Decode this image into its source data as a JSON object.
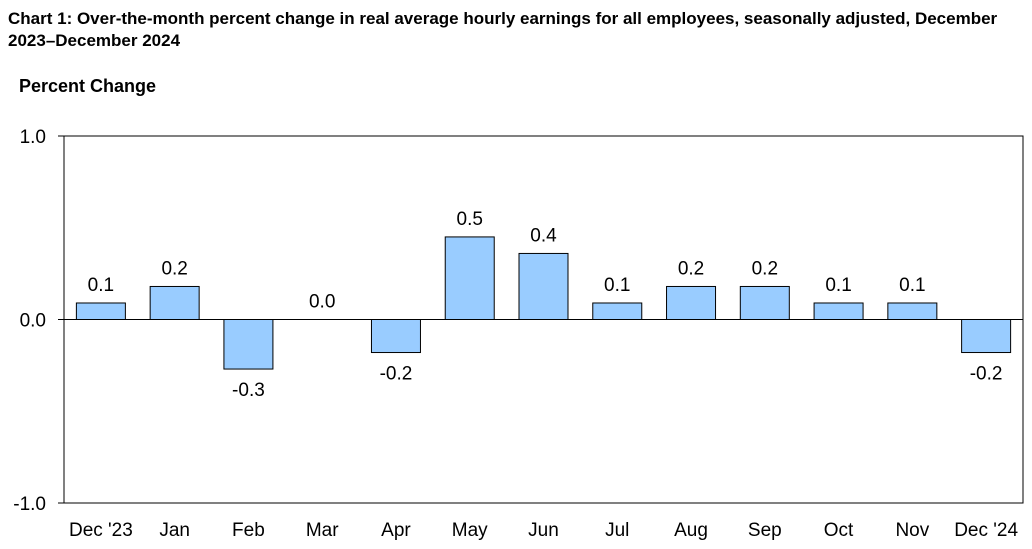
{
  "chart_data": {
    "type": "bar",
    "title": "Chart 1: Over-the-month percent change in real average hourly earnings for all employees, seasonally adjusted, December 2023–December 2024",
    "ylabel": "Percent Change",
    "xlabel": "",
    "ylim": [
      -1.0,
      1.0
    ],
    "yticks": [
      "1.0",
      "0.0",
      "-1.0"
    ],
    "categories": [
      "Dec '23",
      "Jan",
      "Feb",
      "Mar",
      "Apr",
      "May",
      "Jun",
      "Jul",
      "Aug",
      "Sep",
      "Oct",
      "Nov",
      "Dec '24"
    ],
    "values": [
      0.09,
      0.18,
      -0.27,
      0.0,
      -0.18,
      0.45,
      0.36,
      0.09,
      0.18,
      0.18,
      0.09,
      0.09,
      -0.18
    ],
    "data_labels": [
      "0.1",
      "0.2",
      "-0.3",
      "0.0",
      "-0.2",
      "0.5",
      "0.4",
      "0.1",
      "0.2",
      "0.2",
      "0.1",
      "0.1",
      "-0.2"
    ],
    "bar_color": "#99ccff",
    "bar_stroke": "#000000",
    "grid": false,
    "legend": "none"
  }
}
